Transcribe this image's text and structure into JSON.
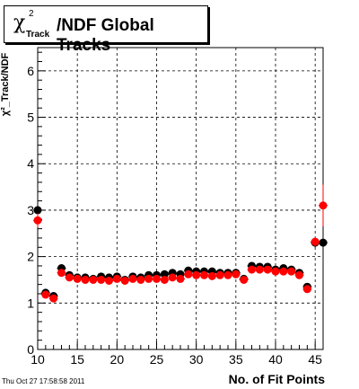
{
  "header": {
    "title_symbol": "χ",
    "title_superscript": "2",
    "title_subscript": "Track",
    "title_rest": "/NDF  Global Tracks"
  },
  "timestamp": "Thu Oct 27 17:58:58 2011",
  "chart_data": {
    "type": "scatter",
    "title": "χ²_Track/NDF  Global Tracks",
    "xlabel": "No. of Fit Points",
    "ylabel": "χ²_Track/NDF",
    "xlim": [
      10,
      46
    ],
    "ylim": [
      0,
      6.5
    ],
    "x_ticks": [
      10,
      15,
      20,
      25,
      30,
      35,
      40,
      45
    ],
    "y_ticks": [
      0,
      1,
      2,
      3,
      4,
      5,
      6
    ],
    "grid": true,
    "colors": {
      "black": "#000000",
      "red": "#ff0000"
    },
    "series": [
      {
        "color": "#000000",
        "points": [
          {
            "x": 10,
            "y": 3.0,
            "err": 0.15
          },
          {
            "x": 11,
            "y": 1.22,
            "err": 0.04
          },
          {
            "x": 12,
            "y": 1.15,
            "err": 0.05
          },
          {
            "x": 13,
            "y": 1.75,
            "err": 0.05
          },
          {
            "x": 14,
            "y": 1.6,
            "err": 0.03
          },
          {
            "x": 15,
            "y": 1.55,
            "err": 0.03
          },
          {
            "x": 16,
            "y": 1.55,
            "err": 0.02
          },
          {
            "x": 17,
            "y": 1.52,
            "err": 0.02
          },
          {
            "x": 18,
            "y": 1.57,
            "err": 0.02
          },
          {
            "x": 19,
            "y": 1.55,
            "err": 0.02
          },
          {
            "x": 20,
            "y": 1.57,
            "err": 0.02
          },
          {
            "x": 21,
            "y": 1.5,
            "err": 0.02
          },
          {
            "x": 22,
            "y": 1.57,
            "err": 0.02
          },
          {
            "x": 23,
            "y": 1.55,
            "err": 0.02
          },
          {
            "x": 24,
            "y": 1.6,
            "err": 0.02
          },
          {
            "x": 25,
            "y": 1.6,
            "err": 0.02
          },
          {
            "x": 26,
            "y": 1.62,
            "err": 0.02
          },
          {
            "x": 27,
            "y": 1.65,
            "err": 0.02
          },
          {
            "x": 28,
            "y": 1.62,
            "err": 0.02
          },
          {
            "x": 29,
            "y": 1.7,
            "err": 0.02
          },
          {
            "x": 30,
            "y": 1.68,
            "err": 0.02
          },
          {
            "x": 31,
            "y": 1.68,
            "err": 0.02
          },
          {
            "x": 32,
            "y": 1.68,
            "err": 0.02
          },
          {
            "x": 33,
            "y": 1.65,
            "err": 0.02
          },
          {
            "x": 34,
            "y": 1.65,
            "err": 0.02
          },
          {
            "x": 35,
            "y": 1.65,
            "err": 0.02
          },
          {
            "x": 36,
            "y": 1.52,
            "err": 0.03
          },
          {
            "x": 37,
            "y": 1.8,
            "err": 0.03
          },
          {
            "x": 38,
            "y": 1.78,
            "err": 0.03
          },
          {
            "x": 39,
            "y": 1.78,
            "err": 0.03
          },
          {
            "x": 40,
            "y": 1.72,
            "err": 0.03
          },
          {
            "x": 41,
            "y": 1.75,
            "err": 0.03
          },
          {
            "x": 42,
            "y": 1.72,
            "err": 0.03
          },
          {
            "x": 43,
            "y": 1.65,
            "err": 0.04
          },
          {
            "x": 44,
            "y": 1.35,
            "err": 0.05
          },
          {
            "x": 45,
            "y": 2.3,
            "err": 0.1
          },
          {
            "x": 46,
            "y": 2.3,
            "err": 0.45
          }
        ]
      },
      {
        "color": "#ff0000",
        "points": [
          {
            "x": 10,
            "y": 2.78,
            "err": 0.15
          },
          {
            "x": 11,
            "y": 1.18,
            "err": 0.04
          },
          {
            "x": 12,
            "y": 1.1,
            "err": 0.05
          },
          {
            "x": 13,
            "y": 1.65,
            "err": 0.05
          },
          {
            "x": 14,
            "y": 1.55,
            "err": 0.03
          },
          {
            "x": 15,
            "y": 1.52,
            "err": 0.03
          },
          {
            "x": 16,
            "y": 1.5,
            "err": 0.02
          },
          {
            "x": 17,
            "y": 1.5,
            "err": 0.02
          },
          {
            "x": 18,
            "y": 1.5,
            "err": 0.02
          },
          {
            "x": 19,
            "y": 1.48,
            "err": 0.02
          },
          {
            "x": 20,
            "y": 1.52,
            "err": 0.02
          },
          {
            "x": 21,
            "y": 1.48,
            "err": 0.02
          },
          {
            "x": 22,
            "y": 1.52,
            "err": 0.02
          },
          {
            "x": 23,
            "y": 1.5,
            "err": 0.02
          },
          {
            "x": 24,
            "y": 1.52,
            "err": 0.02
          },
          {
            "x": 25,
            "y": 1.52,
            "err": 0.02
          },
          {
            "x": 26,
            "y": 1.5,
            "err": 0.02
          },
          {
            "x": 27,
            "y": 1.55,
            "err": 0.02
          },
          {
            "x": 28,
            "y": 1.52,
            "err": 0.02
          },
          {
            "x": 29,
            "y": 1.62,
            "err": 0.02
          },
          {
            "x": 30,
            "y": 1.6,
            "err": 0.02
          },
          {
            "x": 31,
            "y": 1.6,
            "err": 0.02
          },
          {
            "x": 32,
            "y": 1.58,
            "err": 0.02
          },
          {
            "x": 33,
            "y": 1.6,
            "err": 0.02
          },
          {
            "x": 34,
            "y": 1.6,
            "err": 0.02
          },
          {
            "x": 35,
            "y": 1.62,
            "err": 0.02
          },
          {
            "x": 36,
            "y": 1.5,
            "err": 0.03
          },
          {
            "x": 37,
            "y": 1.72,
            "err": 0.03
          },
          {
            "x": 38,
            "y": 1.72,
            "err": 0.03
          },
          {
            "x": 39,
            "y": 1.72,
            "err": 0.03
          },
          {
            "x": 40,
            "y": 1.68,
            "err": 0.03
          },
          {
            "x": 41,
            "y": 1.68,
            "err": 0.03
          },
          {
            "x": 42,
            "y": 1.68,
            "err": 0.03
          },
          {
            "x": 43,
            "y": 1.6,
            "err": 0.04
          },
          {
            "x": 44,
            "y": 1.3,
            "err": 0.05
          },
          {
            "x": 45,
            "y": 2.32,
            "err": 0.1
          },
          {
            "x": 46,
            "y": 3.1,
            "err": 0.45
          }
        ]
      }
    ]
  }
}
